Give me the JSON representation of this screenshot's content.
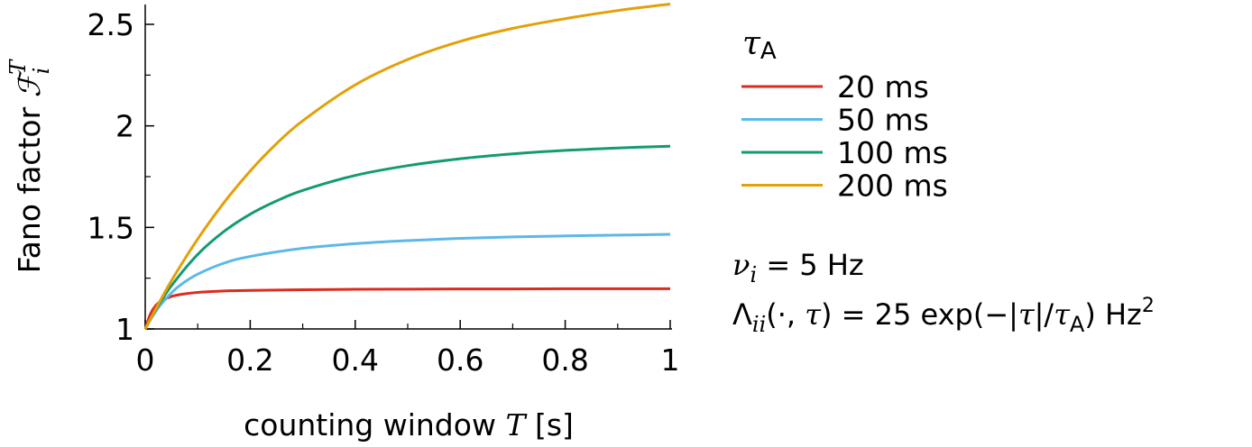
{
  "chart_data": {
    "type": "line",
    "xlabel": "counting window T [s]",
    "ylabel": "Fano factor F_i^T",
    "xlim": [
      0,
      1
    ],
    "ylim": [
      1,
      2.6
    ],
    "xticks": [
      0,
      0.2,
      0.4,
      0.6,
      0.8,
      1
    ],
    "xtick_labels": [
      "0",
      "0.2",
      "0.4",
      "0.6",
      "0.8",
      "1"
    ],
    "yticks": [
      1,
      1.5,
      2,
      2.5
    ],
    "ytick_labels": [
      "1",
      "1.5",
      "2",
      "2.5"
    ],
    "legend_title": "τA",
    "legend_position": "right",
    "series": [
      {
        "name": "20 ms",
        "color": "#dc2b1f",
        "x": [
          0,
          0.01,
          0.02,
          0.03,
          0.05,
          0.07,
          0.1,
          0.15,
          0.2,
          0.3,
          0.4,
          0.5,
          0.6,
          0.7,
          0.8,
          0.9,
          1.0
        ],
        "y": [
          1.0,
          1.074,
          1.115,
          1.137,
          1.16,
          1.171,
          1.18,
          1.187,
          1.19,
          1.193,
          1.195,
          1.196,
          1.197,
          1.197,
          1.198,
          1.198,
          1.198
        ]
      },
      {
        "name": "50 ms",
        "color": "#5db8e8",
        "x": [
          0,
          0.01,
          0.02,
          0.03,
          0.05,
          0.07,
          0.1,
          0.15,
          0.2,
          0.3,
          0.4,
          0.5,
          0.6,
          0.7,
          0.8,
          0.9,
          1.0
        ],
        "y": [
          1.0,
          1.046,
          1.086,
          1.121,
          1.178,
          1.222,
          1.27,
          1.324,
          1.357,
          1.397,
          1.42,
          1.435,
          1.446,
          1.453,
          1.458,
          1.462,
          1.466
        ]
      },
      {
        "name": "100 ms",
        "color": "#139b73",
        "x": [
          0,
          0.02,
          0.05,
          0.1,
          0.15,
          0.2,
          0.25,
          0.3,
          0.4,
          0.5,
          0.6,
          0.7,
          0.8,
          0.9,
          1.0
        ],
        "y": [
          1.0,
          1.094,
          1.213,
          1.367,
          1.48,
          1.565,
          1.63,
          1.682,
          1.756,
          1.804,
          1.838,
          1.862,
          1.879,
          1.891,
          1.9
        ]
      },
      {
        "name": "200 ms",
        "color": "#e3a008",
        "x": [
          0,
          0.02,
          0.05,
          0.1,
          0.15,
          0.2,
          0.25,
          0.3,
          0.4,
          0.5,
          0.6,
          0.7,
          0.8,
          0.9,
          1.0
        ],
        "y": [
          1.0,
          1.098,
          1.238,
          1.443,
          1.622,
          1.778,
          1.912,
          2.025,
          2.202,
          2.327,
          2.416,
          2.48,
          2.528,
          2.568,
          2.6
        ]
      }
    ],
    "annotations": {
      "rate": "νi = 5 Hz",
      "kernel": "Λii(·, τ) = 25 exp(−|τ|/τA) Hz²"
    }
  }
}
